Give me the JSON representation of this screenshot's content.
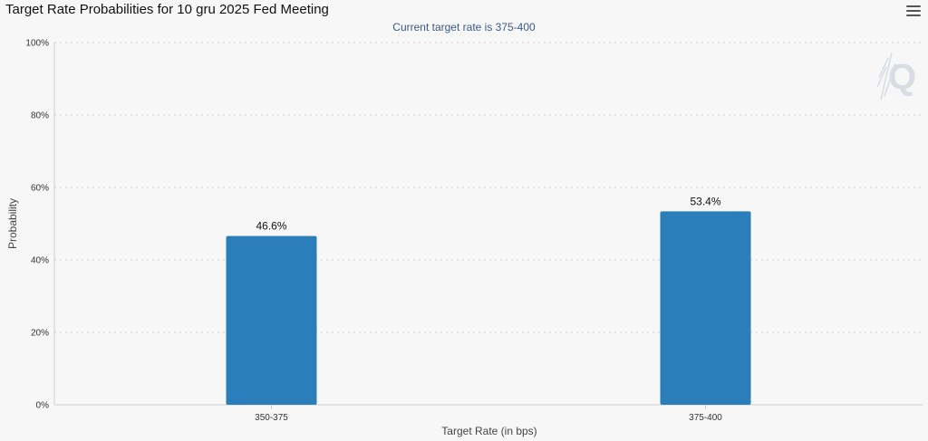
{
  "header": {
    "title": "Target Rate Probabilities for 10 gru 2025 Fed Meeting",
    "menu_icon": "hamburger-menu-icon"
  },
  "colors": {
    "bar": "#2a7fba",
    "grid": "#cfcfcf",
    "subtitle": "#3a5a8a"
  },
  "chart_data": {
    "type": "bar",
    "title": "Target Rate Probabilities for 10 gru 2025 Fed Meeting",
    "subtitle": "Current target rate is 375-400",
    "categories": [
      "350-375",
      "375-400"
    ],
    "values": [
      46.6,
      53.4
    ],
    "data_labels": [
      "46.6%",
      "53.4%"
    ],
    "xlabel": "Target Rate (in bps)",
    "ylabel": "Probability",
    "ylim": [
      0,
      100
    ],
    "yticks": [
      0,
      20,
      40,
      60,
      80,
      100
    ],
    "ytick_labels": [
      "0%",
      "20%",
      "40%",
      "60%",
      "80%",
      "100%"
    ],
    "grid": true,
    "legend": "none"
  }
}
